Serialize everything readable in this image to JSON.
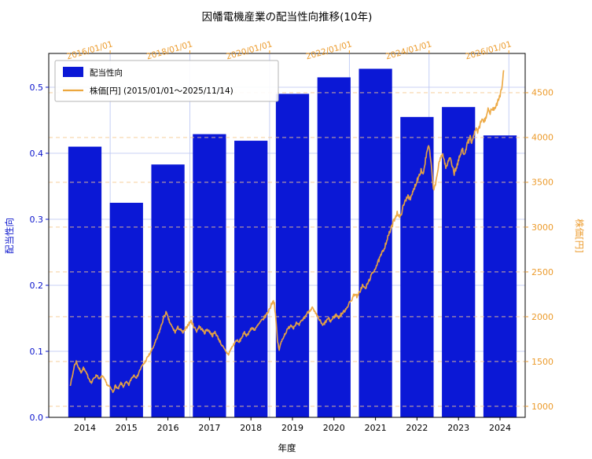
{
  "chart_data": {
    "type": "bar+line",
    "title": "因幡電機産業の配当性向推移(10年)",
    "xlabel": "年度",
    "ylabel_left": "配当性向",
    "ylabel_right": "株価[円]",
    "legend": {
      "entries": [
        {
          "type": "patch",
          "label": "配当性向"
        },
        {
          "type": "line",
          "label": "株価[円] (2015/01/01～2025/11/14)"
        }
      ]
    },
    "colors": {
      "bar": "#0b18d6",
      "blue_text": "#0a14cc",
      "blue_grid": "#b7c3f3",
      "line": "#eca73e",
      "orange_text": "#ec9b2c",
      "orange_grid": "#f5c98f",
      "axis": "#000000"
    },
    "bar_series": {
      "name": "配当性向",
      "categories": [
        "2014",
        "2015",
        "2016",
        "2017",
        "2018",
        "2019",
        "2020",
        "2021",
        "2022",
        "2023",
        "2024"
      ],
      "values": [
        0.41,
        0.325,
        0.383,
        0.429,
        0.419,
        0.49,
        0.515,
        0.528,
        0.455,
        0.47,
        0.427
      ]
    },
    "line_series": {
      "name": "株価[円] (2015/01/01～2025/11/14)",
      "x": [
        2015.0,
        2015.05,
        2015.1,
        2015.15,
        2015.2,
        2015.27,
        2015.33,
        2015.4,
        2015.47,
        2015.53,
        2015.6,
        2015.67,
        2015.73,
        2015.8,
        2015.87,
        2015.93,
        2016.0,
        2016.07,
        2016.13,
        2016.2,
        2016.27,
        2016.33,
        2016.4,
        2016.47,
        2016.53,
        2016.6,
        2016.67,
        2016.73,
        2016.8,
        2016.87,
        2016.93,
        2017.0,
        2017.07,
        2017.13,
        2017.2,
        2017.27,
        2017.33,
        2017.4,
        2017.45,
        2017.5,
        2017.57,
        2017.63,
        2017.7,
        2017.77,
        2017.83,
        2017.9,
        2017.97,
        2018.03,
        2018.1,
        2018.17,
        2018.23,
        2018.3,
        2018.37,
        2018.43,
        2018.5,
        2018.57,
        2018.63,
        2018.7,
        2018.77,
        2018.83,
        2018.9,
        2018.97,
        2019.03,
        2019.1,
        2019.17,
        2019.23,
        2019.3,
        2019.37,
        2019.43,
        2019.5,
        2019.57,
        2019.63,
        2019.7,
        2019.77,
        2019.83,
        2019.9,
        2019.97,
        2020.03,
        2020.08,
        2020.12,
        2020.16,
        2020.2,
        2020.24,
        2020.28,
        2020.33,
        2020.4,
        2020.47,
        2020.53,
        2020.6,
        2020.67,
        2020.73,
        2020.8,
        2020.87,
        2020.93,
        2021.0,
        2021.07,
        2021.13,
        2021.2,
        2021.27,
        2021.33,
        2021.4,
        2021.47,
        2021.53,
        2021.6,
        2021.67,
        2021.73,
        2021.8,
        2021.87,
        2021.93,
        2022.0,
        2022.07,
        2022.13,
        2022.2,
        2022.27,
        2022.33,
        2022.4,
        2022.47,
        2022.53,
        2022.6,
        2022.67,
        2022.73,
        2022.8,
        2022.87,
        2022.93,
        2023.0,
        2023.07,
        2023.13,
        2023.2,
        2023.27,
        2023.33,
        2023.4,
        2023.47,
        2023.53,
        2023.6,
        2023.67,
        2023.73,
        2023.8,
        2023.85,
        2023.9,
        2023.95,
        2024.0,
        2024.04,
        2024.08,
        2024.12,
        2024.16,
        2024.2,
        2024.24,
        2024.28,
        2024.33,
        2024.38,
        2024.43,
        2024.48,
        2024.53,
        2024.58,
        2024.63,
        2024.68,
        2024.73,
        2024.78,
        2024.83,
        2024.88,
        2024.93,
        2024.98,
        2025.03,
        2025.08,
        2025.13,
        2025.18,
        2025.23,
        2025.28,
        2025.33,
        2025.38,
        2025.43,
        2025.48,
        2025.53,
        2025.58,
        2025.63,
        2025.68,
        2025.73,
        2025.78,
        2025.82,
        2025.85,
        2025.87
      ],
      "y": [
        1240,
        1330,
        1450,
        1500,
        1440,
        1380,
        1430,
        1370,
        1310,
        1260,
        1320,
        1350,
        1300,
        1340,
        1290,
        1240,
        1210,
        1160,
        1230,
        1190,
        1260,
        1220,
        1270,
        1240,
        1310,
        1350,
        1320,
        1390,
        1450,
        1490,
        1540,
        1590,
        1650,
        1710,
        1790,
        1880,
        1970,
        2050,
        1990,
        1930,
        1870,
        1830,
        1880,
        1850,
        1820,
        1870,
        1920,
        1950,
        1890,
        1840,
        1890,
        1860,
        1820,
        1860,
        1830,
        1790,
        1830,
        1770,
        1710,
        1660,
        1610,
        1580,
        1640,
        1690,
        1740,
        1710,
        1770,
        1820,
        1790,
        1840,
        1880,
        1850,
        1900,
        1940,
        1970,
        2010,
        2060,
        2120,
        2180,
        2150,
        1950,
        1720,
        1630,
        1700,
        1760,
        1820,
        1870,
        1910,
        1880,
        1930,
        1900,
        1950,
        1990,
        2030,
        2070,
        2100,
        2050,
        2000,
        1950,
        1900,
        1940,
        1980,
        1950,
        1990,
        2020,
        1990,
        2030,
        2060,
        2100,
        2150,
        2200,
        2260,
        2220,
        2290,
        2350,
        2310,
        2380,
        2440,
        2500,
        2560,
        2620,
        2690,
        2760,
        2840,
        2930,
        3010,
        3090,
        3160,
        3100,
        3200,
        3290,
        3360,
        3300,
        3400,
        3490,
        3560,
        3640,
        3590,
        3720,
        3850,
        3900,
        3740,
        3560,
        3400,
        3480,
        3590,
        3680,
        3760,
        3830,
        3740,
        3660,
        3730,
        3790,
        3690,
        3600,
        3660,
        3730,
        3800,
        3870,
        3820,
        3890,
        3950,
        4000,
        3940,
        4030,
        4100,
        4060,
        4140,
        4210,
        4170,
        4240,
        4300,
        4260,
        4330,
        4290,
        4360,
        4420,
        4480,
        4560,
        4650,
        4750
      ]
    },
    "left_axis": {
      "tick_labels": [
        "0.0",
        "0.1",
        "0.2",
        "0.3",
        "0.4",
        "0.5"
      ],
      "tick_values": [
        0.0,
        0.1,
        0.2,
        0.3,
        0.4,
        0.5
      ],
      "lim": [
        0,
        0.5512
      ]
    },
    "right_axis": {
      "tick_labels": [
        "1000",
        "1500",
        "2000",
        "2500",
        "3000",
        "3500",
        "4000",
        "4500"
      ],
      "tick_values": [
        1000,
        1500,
        2000,
        2500,
        3000,
        3500,
        4000,
        4500
      ],
      "lim": [
        877,
        4938
      ]
    },
    "date_axis": {
      "tick_labels": [
        "2016/01/01",
        "2018/01/01",
        "2020/01/01",
        "2022/01/01",
        "2024/01/01",
        "2026/01/01"
      ],
      "tick_values": [
        2016.0,
        2018.0,
        2020.0,
        2022.0,
        2024.0,
        2026.0
      ],
      "lim": [
        2014.46,
        2026.41
      ]
    },
    "cat_axis": {
      "lim": [
        -0.871,
        10.606
      ],
      "bar_width": 0.8
    }
  }
}
